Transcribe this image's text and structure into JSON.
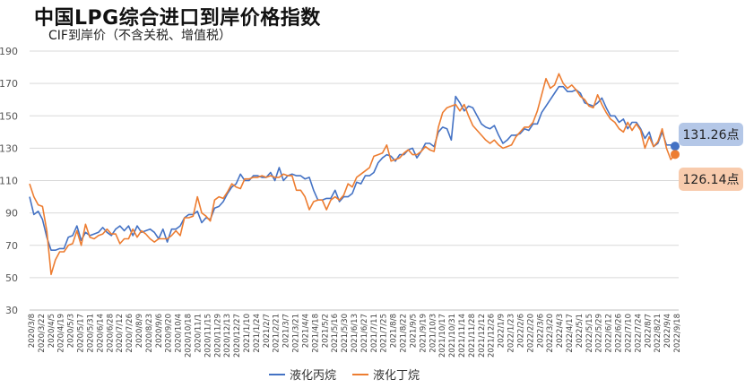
{
  "title": "中国LPG综合进口到岸价格指数",
  "subtitle": "CIF到岸价（不含关税、增值税）",
  "colors": {
    "propane": "#4472C4",
    "butane": "#ED7D31",
    "propane_label_bg": "#B4C7E7",
    "butane_label_bg": "#F8CBAD"
  },
  "chart_data": {
    "type": "line",
    "ylim": [
      30,
      190
    ],
    "yticks": [
      30,
      50,
      70,
      90,
      110,
      130,
      150,
      170,
      190
    ],
    "x_tick_labels": [
      "2020/3/8",
      "2020/3/22",
      "2020/4/5",
      "2020/4/19",
      "2020/5/3",
      "2020/5/17",
      "2020/5/31",
      "2020/6/14",
      "2020/6/28",
      "2020/7/12",
      "2020/7/26",
      "2020/8/9",
      "2020/8/23",
      "2020/9/6",
      "2020/9/20",
      "2020/10/4",
      "2020/10/18",
      "2020/11/1",
      "2020/11/15",
      "2020/11/29",
      "2020/12/13",
      "2020/12/27",
      "2021/1/10",
      "2021/1/24",
      "2021/2/7",
      "2021/2/21",
      "2021/3/7",
      "2021/3/21",
      "2021/4/4",
      "2021/4/18",
      "2021/5/2",
      "2021/5/16",
      "2021/5/30",
      "2021/6/13",
      "2021/6/27",
      "2021/7/11",
      "2021/7/25",
      "2021/8/8",
      "2021/8/22",
      "2021/9/5",
      "2021/9/19",
      "2021/10/3",
      "2021/10/17",
      "2021/10/31",
      "2021/11/14",
      "2021/11/28",
      "2021/12/12",
      "2021/12/26",
      "2022/1/9",
      "2022/1/23",
      "2022/2/6",
      "2022/2/20",
      "2022/3/6",
      "2022/3/20",
      "2022/4/3",
      "2022/4/17",
      "2022/5/1",
      "2022/5/15",
      "2022/5/29",
      "2022/6/12",
      "2022/6/26",
      "2022/7/10",
      "2022/7/24",
      "2022/8/7",
      "2022/8/21",
      "2022/9/4",
      "2022/9/18"
    ],
    "series": [
      {
        "name": "液化丙烷",
        "color": "#4472C4",
        "values": [
          100,
          89,
          91,
          86,
          75,
          67,
          67,
          68,
          68,
          75,
          76,
          82,
          73,
          78,
          76,
          77,
          78,
          81,
          78,
          76,
          80,
          82,
          79,
          82,
          76,
          82,
          78,
          79,
          80,
          78,
          74,
          80,
          72,
          80,
          80,
          82,
          87,
          89,
          89,
          91,
          84,
          87,
          86,
          93,
          94,
          97,
          102,
          106,
          108,
          114,
          110,
          110,
          113,
          113,
          112,
          112,
          115,
          110,
          118,
          110,
          113,
          114,
          113,
          113,
          111,
          112,
          104,
          98,
          98,
          99,
          99,
          104,
          97,
          100,
          100,
          102,
          109,
          108,
          113,
          113,
          115,
          121,
          124,
          126,
          125,
          122,
          126,
          126,
          129,
          130,
          124,
          128,
          133,
          133,
          131,
          140,
          143,
          142,
          135,
          162,
          158,
          153,
          156,
          155,
          150,
          145,
          143,
          142,
          144,
          138,
          133,
          135,
          138,
          138,
          139,
          142,
          141,
          145,
          145,
          152,
          156,
          160,
          164,
          168,
          168,
          165,
          165,
          166,
          164,
          158,
          157,
          156,
          158,
          161,
          155,
          150,
          150,
          146,
          148,
          142,
          146,
          146,
          142,
          136,
          140,
          131,
          133,
          140,
          132,
          132,
          131.26
        ]
      },
      {
        "name": "液化丁烷",
        "color": "#ED7D31",
        "values": [
          108,
          100,
          95,
          94,
          79,
          52,
          61,
          66,
          66,
          70,
          71,
          79,
          70,
          83,
          75,
          74,
          76,
          77,
          80,
          77,
          77,
          71,
          74,
          74,
          80,
          75,
          79,
          77,
          74,
          72,
          74,
          74,
          74,
          76,
          79,
          76,
          87,
          87,
          88,
          100,
          90,
          88,
          85,
          98,
          100,
          99,
          103,
          108,
          106,
          105,
          111,
          111,
          112,
          112,
          113,
          112,
          113,
          112,
          112,
          114,
          113,
          113,
          104,
          104,
          100,
          92,
          97,
          98,
          98,
          92,
          98,
          100,
          98,
          101,
          108,
          106,
          112,
          114,
          116,
          118,
          125,
          126,
          127,
          132,
          122,
          123,
          124,
          127,
          129,
          126,
          126,
          128,
          131,
          129,
          128,
          143,
          152,
          155,
          156,
          157,
          153,
          157,
          150,
          144,
          141,
          138,
          135,
          133,
          135,
          132,
          130,
          131,
          132,
          137,
          140,
          143,
          143,
          146,
          153,
          163,
          173,
          167,
          169,
          176,
          170,
          167,
          169,
          166,
          162,
          160,
          156,
          155,
          163,
          157,
          152,
          148,
          146,
          142,
          140,
          146,
          141,
          145,
          141,
          130,
          137,
          131,
          134,
          142,
          130,
          123,
          126.14
        ]
      }
    ],
    "end_labels": [
      {
        "series": "液化丙烷",
        "text": "131.26点",
        "value": 131.26
      },
      {
        "series": "液化丁烷",
        "text": "126.14点",
        "value": 126.14
      }
    ]
  }
}
